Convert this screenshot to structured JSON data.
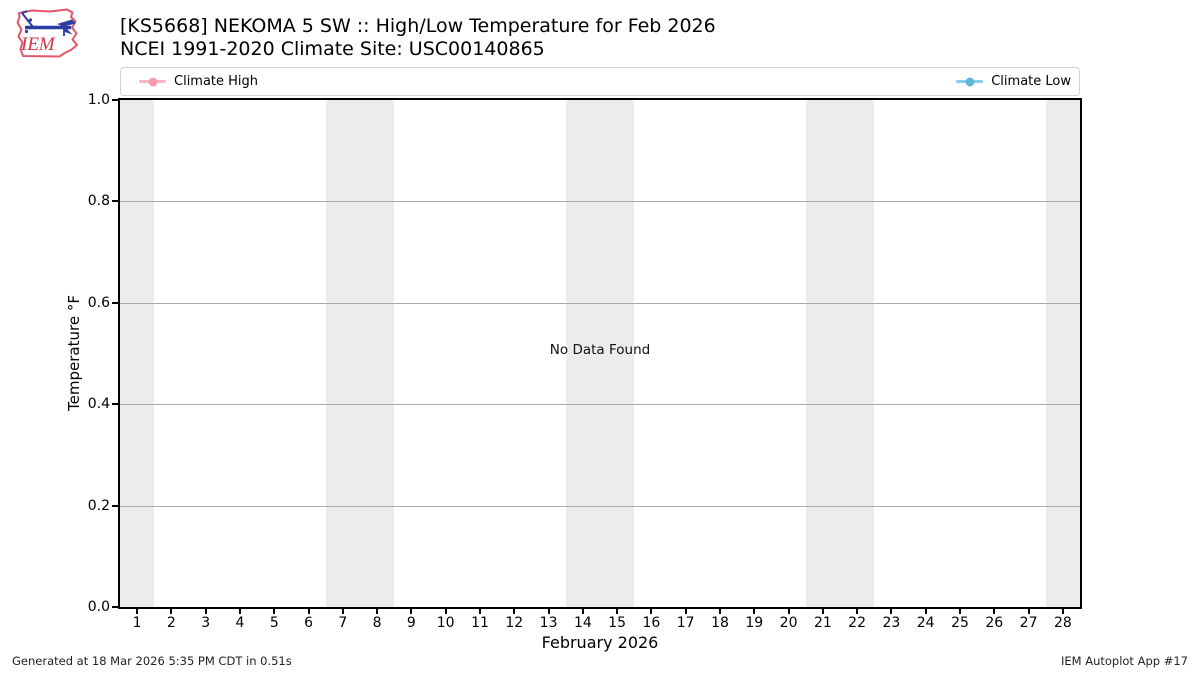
{
  "header": {
    "logo_text": "IEM",
    "title_line1": "[KS5668] NEKOMA 5 SW :: High/Low Temperature for Feb 2026",
    "title_line2": "NCEI 1991-2020 Climate Site: USC00140865"
  },
  "legend": {
    "entries": [
      {
        "label": "Climate High",
        "line_color": "#ffb6c1",
        "marker_color": "#f79cb0"
      },
      {
        "label": "Climate Low",
        "line_color": "#87ceeb",
        "marker_color": "#5fb7da"
      }
    ]
  },
  "chart_data": {
    "type": "line",
    "title": "[KS5668] NEKOMA 5 SW :: High/Low Temperature for Feb 2026",
    "subtitle": "NCEI 1991-2020 Climate Site: USC00140865",
    "xlabel": "February 2026",
    "ylabel": "Temperature °F",
    "xlim": [
      0.5,
      28.5
    ],
    "ylim": [
      0.0,
      1.0
    ],
    "x": [
      1,
      2,
      3,
      4,
      5,
      6,
      7,
      8,
      9,
      10,
      11,
      12,
      13,
      14,
      15,
      16,
      17,
      18,
      19,
      20,
      21,
      22,
      23,
      24,
      25,
      26,
      27,
      28
    ],
    "xticks": [
      1,
      2,
      3,
      4,
      5,
      6,
      7,
      8,
      9,
      10,
      11,
      12,
      13,
      14,
      15,
      16,
      17,
      18,
      19,
      20,
      21,
      22,
      23,
      24,
      25,
      26,
      27,
      28
    ],
    "ytick_labels": [
      "0.0",
      "0.2",
      "0.4",
      "0.6",
      "0.8",
      "1.0"
    ],
    "series": [
      {
        "name": "Climate High",
        "color": "#ffb6c1",
        "values": []
      },
      {
        "name": "Climate Low",
        "color": "#87ceeb",
        "values": []
      }
    ],
    "no_data_message": "No Data Found",
    "weekend_band_day_ranges": [
      [
        1,
        1
      ],
      [
        7,
        8
      ],
      [
        14,
        15
      ],
      [
        21,
        22
      ],
      [
        28,
        28
      ]
    ],
    "grid": "horizontal",
    "legend_position": "top-full-width"
  },
  "footer": {
    "left": "Generated at 18 Mar 2026 5:35 PM CDT in 0.51s",
    "right": "IEM Autoplot App #17"
  }
}
